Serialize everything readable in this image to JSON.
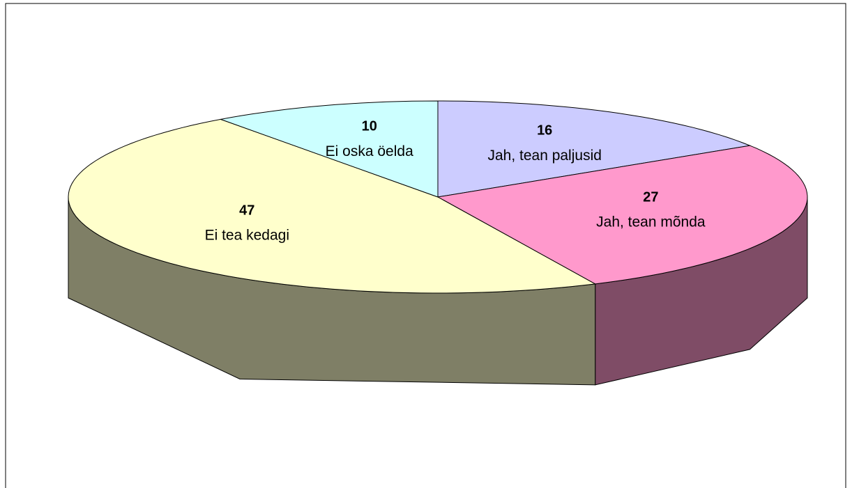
{
  "chart_data": {
    "type": "pie",
    "categories": [
      "Jah, tean paljusid",
      "Jah, tean mõnda",
      "Ei tea kedagi",
      "Ei oska öelda"
    ],
    "values": [
      16,
      27,
      47,
      10
    ],
    "colors": [
      "#ccccff",
      "#ff99cc",
      "#ffffcc",
      "#ccffff"
    ]
  }
}
